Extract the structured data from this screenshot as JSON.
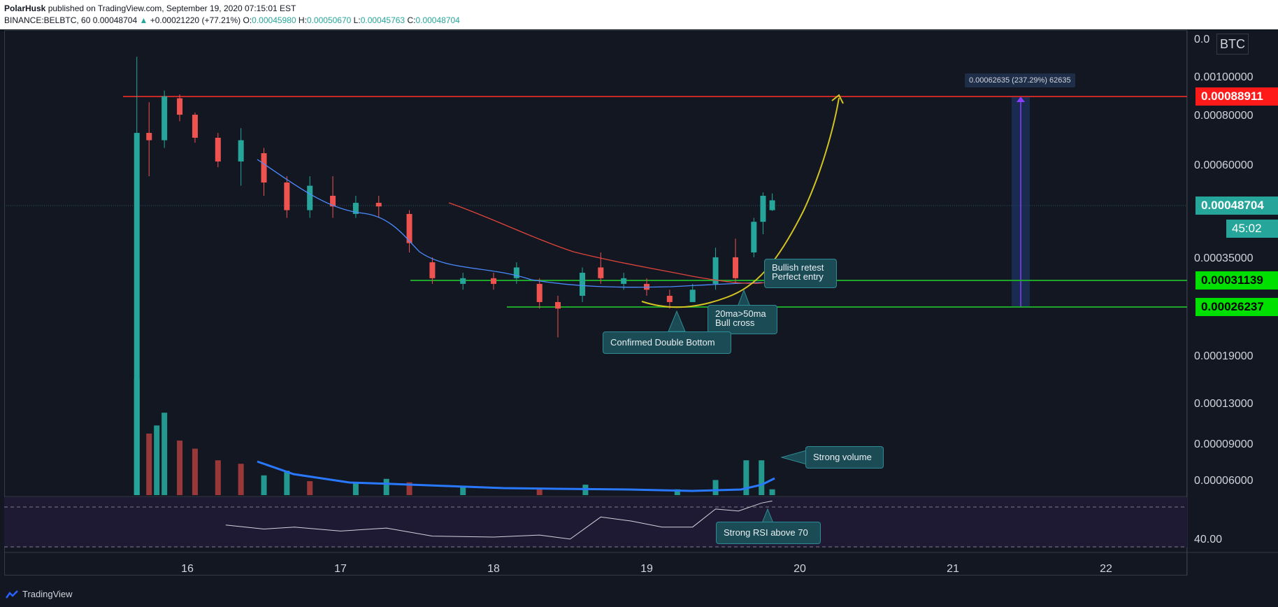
{
  "header": {
    "author": "PolarHusk",
    "published": "published on TradingView.com, September 19, 2020 07:15:01 EST",
    "symbol": "BINANCE:BELBTC, 60",
    "last": "0.00048704",
    "change": "+0.00021220 (+77.21%)",
    "o_label": "O:",
    "o_value": "0.00045980",
    "h_label": "H:",
    "h_value": "0.00050670",
    "l_label": "L:",
    "l_value": "0.00045763",
    "c_label": "C:",
    "c_value": "0.00048704"
  },
  "currency_badge": "BTC",
  "price_tags": {
    "target": "0.00088911",
    "current": "0.00048704",
    "countdown": "45:02",
    "support_upper": "0.00031139",
    "support_lower": "0.00026237"
  },
  "measure_label": "0.00062635 (237.29%) 62635",
  "annotations": {
    "bullish_retest_1": "Bullish retest",
    "bullish_retest_2": "Perfect entry",
    "cross_1": "20ma>50ma",
    "cross_2": "Bull cross",
    "double_bottom": "Confirmed Double Bottom",
    "strong_volume": "Strong volume",
    "strong_rsi": "Strong RSI above 70"
  },
  "footer": {
    "brand": "TradingView"
  },
  "colors": {
    "up": "#26a69a",
    "down": "#ef5350",
    "ma20": "#2962ff",
    "ma50": "#e0453b",
    "target_line": "#c62828",
    "support_line": "#1fa62a",
    "arrow": "#d4c422",
    "tag_green": "#00e000",
    "tag_red": "#ff1a1a",
    "tag_teal": "#26a69a"
  },
  "chart_data": {
    "type": "candlestick",
    "x_tick_labels": [
      "16",
      "17",
      "18",
      "19",
      "20",
      "21",
      "22"
    ],
    "y_tick_labels": [
      "0.00100000",
      "0.00080000",
      "0.00060000",
      "0.00035000",
      "0.00019000",
      "0.00013000",
      "0.00009000",
      "0.00006000"
    ],
    "y_tick_values": [
      0.001,
      0.0008,
      0.0006,
      0.00035,
      0.00019,
      0.00013,
      9e-05,
      6e-05
    ],
    "y_scale": "log",
    "horizontal_levels": [
      {
        "value": 0.00088911,
        "color": "#c62828"
      },
      {
        "value": 0.00031139,
        "color": "#1fa62a"
      },
      {
        "value": 0.00026237,
        "color": "#1fa62a"
      }
    ],
    "candles_sampled": [
      {
        "t": 15.67,
        "o": 3.7e-05,
        "h": 0.00112,
        "l": 3.7e-05,
        "c": 0.00072
      },
      {
        "t": 15.75,
        "o": 0.00072,
        "h": 0.00086,
        "l": 0.00056,
        "c": 0.00069
      },
      {
        "t": 15.85,
        "o": 0.00069,
        "h": 0.00092,
        "l": 0.00066,
        "c": 0.00089
      },
      {
        "t": 15.95,
        "o": 0.00088,
        "h": 0.0009,
        "l": 0.00077,
        "c": 0.0008
      },
      {
        "t": 16.05,
        "o": 0.0008,
        "h": 0.00081,
        "l": 0.00068,
        "c": 0.0007
      },
      {
        "t": 16.2,
        "o": 0.0007,
        "h": 0.00072,
        "l": 0.00059,
        "c": 0.00061
      },
      {
        "t": 16.35,
        "o": 0.00061,
        "h": 0.00074,
        "l": 0.00053,
        "c": 0.00069
      },
      {
        "t": 16.5,
        "o": 0.00064,
        "h": 0.00066,
        "l": 0.0005,
        "c": 0.00054
      },
      {
        "t": 16.65,
        "o": 0.00054,
        "h": 0.00056,
        "l": 0.00044,
        "c": 0.00046
      },
      {
        "t": 16.8,
        "o": 0.00046,
        "h": 0.00056,
        "l": 0.00044,
        "c": 0.00053
      },
      {
        "t": 16.95,
        "o": 0.0005,
        "h": 0.00056,
        "l": 0.00044,
        "c": 0.00047
      },
      {
        "t": 17.1,
        "o": 0.00045,
        "h": 0.0005,
        "l": 0.00044,
        "c": 0.00048
      },
      {
        "t": 17.25,
        "o": 0.00048,
        "h": 0.0005,
        "l": 0.00044,
        "c": 0.00047
      },
      {
        "t": 17.45,
        "o": 0.00045,
        "h": 0.00046,
        "l": 0.00036,
        "c": 0.00038
      },
      {
        "t": 17.6,
        "o": 0.00034,
        "h": 0.00035,
        "l": 0.0003,
        "c": 0.00031
      },
      {
        "t": 17.8,
        "o": 0.0003,
        "h": 0.00032,
        "l": 0.00029,
        "c": 0.00031
      },
      {
        "t": 18.0,
        "o": 0.00031,
        "h": 0.00032,
        "l": 0.00029,
        "c": 0.0003
      },
      {
        "t": 18.15,
        "o": 0.00031,
        "h": 0.00034,
        "l": 0.0003,
        "c": 0.00033
      },
      {
        "t": 18.3,
        "o": 0.0003,
        "h": 0.00031,
        "l": 0.00026,
        "c": 0.00027
      },
      {
        "t": 18.42,
        "o": 0.00027,
        "h": 0.00028,
        "l": 0.00022,
        "c": 0.00026
      },
      {
        "t": 18.58,
        "o": 0.00028,
        "h": 0.00033,
        "l": 0.00027,
        "c": 0.00032
      },
      {
        "t": 18.7,
        "o": 0.00033,
        "h": 0.00036,
        "l": 0.0003,
        "c": 0.00031
      },
      {
        "t": 18.85,
        "o": 0.0003,
        "h": 0.00032,
        "l": 0.00029,
        "c": 0.00031
      },
      {
        "t": 19.0,
        "o": 0.0003,
        "h": 0.00031,
        "l": 0.00028,
        "c": 0.00029
      },
      {
        "t": 19.15,
        "o": 0.00028,
        "h": 0.00029,
        "l": 0.00026,
        "c": 0.00027
      },
      {
        "t": 19.3,
        "o": 0.00027,
        "h": 0.0003,
        "l": 0.00027,
        "c": 0.00029
      },
      {
        "t": 19.45,
        "o": 0.0003,
        "h": 0.00037,
        "l": 0.00029,
        "c": 0.00035
      },
      {
        "t": 19.58,
        "o": 0.00035,
        "h": 0.00039,
        "l": 0.0003,
        "c": 0.00031
      },
      {
        "t": 19.7,
        "o": 0.00036,
        "h": 0.00044,
        "l": 0.00035,
        "c": 0.00043
      },
      {
        "t": 19.76,
        "o": 0.00043,
        "h": 0.00051,
        "l": 0.0004,
        "c": 0.0005
      },
      {
        "t": 19.82,
        "o": 0.00046,
        "h": 0.000507,
        "l": 0.000458,
        "c": 0.000487
      }
    ],
    "volume_sampled": [
      {
        "t": 15.67,
        "v": 1.0,
        "up": true
      },
      {
        "t": 15.75,
        "v": 0.53,
        "up": false
      },
      {
        "t": 15.8,
        "v": 0.6,
        "up": true
      },
      {
        "t": 15.85,
        "v": 0.71,
        "up": true
      },
      {
        "t": 15.95,
        "v": 0.47,
        "up": false
      },
      {
        "t": 16.05,
        "v": 0.4,
        "up": false
      },
      {
        "t": 16.2,
        "v": 0.3,
        "up": false
      },
      {
        "t": 16.35,
        "v": 0.27,
        "up": false
      },
      {
        "t": 16.5,
        "v": 0.17,
        "up": true
      },
      {
        "t": 16.65,
        "v": 0.21,
        "up": true
      },
      {
        "t": 16.8,
        "v": 0.12,
        "up": false
      },
      {
        "t": 17.1,
        "v": 0.1,
        "up": true
      },
      {
        "t": 17.3,
        "v": 0.14,
        "up": true
      },
      {
        "t": 17.45,
        "v": 0.11,
        "up": false
      },
      {
        "t": 17.8,
        "v": 0.07,
        "up": true
      },
      {
        "t": 18.3,
        "v": 0.06,
        "up": false
      },
      {
        "t": 18.6,
        "v": 0.09,
        "up": true
      },
      {
        "t": 19.2,
        "v": 0.05,
        "up": true
      },
      {
        "t": 19.45,
        "v": 0.13,
        "up": true
      },
      {
        "t": 19.65,
        "v": 0.3,
        "up": true
      },
      {
        "t": 19.75,
        "v": 0.3,
        "up": true
      },
      {
        "t": 19.82,
        "v": 0.05,
        "up": true
      }
    ],
    "rsi_tick_label": "40.00",
    "rsi_sampled": [
      {
        "t": 16.25,
        "v": 52
      },
      {
        "t": 16.5,
        "v": 48
      },
      {
        "t": 16.7,
        "v": 50
      },
      {
        "t": 17.0,
        "v": 46
      },
      {
        "t": 17.3,
        "v": 49
      },
      {
        "t": 17.6,
        "v": 41
      },
      {
        "t": 18.0,
        "v": 40
      },
      {
        "t": 18.3,
        "v": 42
      },
      {
        "t": 18.5,
        "v": 38
      },
      {
        "t": 18.7,
        "v": 60
      },
      {
        "t": 18.9,
        "v": 56
      },
      {
        "t": 19.1,
        "v": 50
      },
      {
        "t": 19.3,
        "v": 50
      },
      {
        "t": 19.45,
        "v": 68
      },
      {
        "t": 19.6,
        "v": 66
      },
      {
        "t": 19.75,
        "v": 74
      },
      {
        "t": 19.82,
        "v": 76
      }
    ]
  }
}
